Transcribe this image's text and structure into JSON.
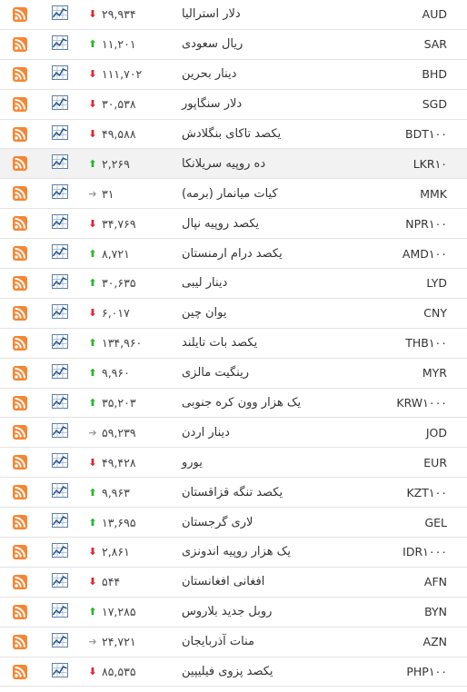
{
  "colors": {
    "down": "#e0262b",
    "up": "#2ab534",
    "same": "#9a9a9a",
    "rss": "#f58634"
  },
  "icons": {
    "feed": "rss-icon",
    "history": "chart-icon"
  },
  "rows": [
    {
      "code": "AUD",
      "name": "دلار استرالیا",
      "price": "۲۹,۹۳۴",
      "trend": "down",
      "arrow": "⬇"
    },
    {
      "code": "SAR",
      "name": "ریال سعودی",
      "price": "۱۱,۲۰۱",
      "trend": "up",
      "arrow": "⬆"
    },
    {
      "code": "BHD",
      "name": "دینار بحرین",
      "price": "۱۱۱,۷۰۲",
      "trend": "down",
      "arrow": "⬇"
    },
    {
      "code": "SGD",
      "name": "دلار سنگاپور",
      "price": "۳۰,۵۳۸",
      "trend": "down",
      "arrow": "⬇"
    },
    {
      "code": "BDT۱۰۰",
      "name": "یکصد تاکای بنگلادش",
      "price": "۴۹,۵۸۸",
      "trend": "down",
      "arrow": "⬇"
    },
    {
      "code": "LKR۱۰",
      "name": "ده روپیه سریلانکا",
      "price": "۲,۲۶۹",
      "trend": "up",
      "arrow": "⬆"
    },
    {
      "code": "MMK",
      "name": "کیات میانمار (برمه)",
      "price": "۳۱",
      "trend": "same",
      "arrow": "➔"
    },
    {
      "code": "NPR۱۰۰",
      "name": "یکصد روپیه نپال",
      "price": "۳۴,۷۶۹",
      "trend": "down",
      "arrow": "⬇"
    },
    {
      "code": "AMD۱۰۰",
      "name": "یکصد درام ارمنستان",
      "price": "۸,۷۲۱",
      "trend": "up",
      "arrow": "⬆"
    },
    {
      "code": "LYD",
      "name": "دینار لیبی",
      "price": "۳۰,۶۳۵",
      "trend": "up",
      "arrow": "⬆"
    },
    {
      "code": "CNY",
      "name": "یوان چین",
      "price": "۶,۰۱۷",
      "trend": "down",
      "arrow": "⬇"
    },
    {
      "code": "THB۱۰۰",
      "name": "یکصد بات تایلند",
      "price": "۱۳۴,۹۶۰",
      "trend": "up",
      "arrow": "⬆"
    },
    {
      "code": "MYR",
      "name": "رینگیت مالزی",
      "price": "۹,۹۶۰",
      "trend": "up",
      "arrow": "⬆"
    },
    {
      "code": "KRW۱۰۰۰",
      "name": "یک هزار وون کره جنوبی",
      "price": "۳۵,۲۰۳",
      "trend": "up",
      "arrow": "⬆"
    },
    {
      "code": "JOD",
      "name": "دینار اردن",
      "price": "۵۹,۲۳۹",
      "trend": "same",
      "arrow": "➔"
    },
    {
      "code": "EUR",
      "name": "یورو",
      "price": "۴۹,۴۲۸",
      "trend": "down",
      "arrow": "⬇"
    },
    {
      "code": "KZT۱۰۰",
      "name": "یکصد تنگه قزاقستان",
      "price": "۹,۹۶۳",
      "trend": "up",
      "arrow": "⬆"
    },
    {
      "code": "GEL",
      "name": "لاری گرجستان",
      "price": "۱۳,۶۹۵",
      "trend": "up",
      "arrow": "⬆"
    },
    {
      "code": "IDR۱۰۰۰",
      "name": "یک هزار روپیه اندونزی",
      "price": "۲,۸۶۱",
      "trend": "down",
      "arrow": "⬇"
    },
    {
      "code": "AFN",
      "name": "افغانی افغانستان",
      "price": "۵۴۴",
      "trend": "down",
      "arrow": "⬇"
    },
    {
      "code": "BYN",
      "name": "روبل جدید بلاروس",
      "price": "۱۷,۲۸۵",
      "trend": "up",
      "arrow": "⬆"
    },
    {
      "code": "AZN",
      "name": "منات آذربایجان",
      "price": "۲۴,۷۲۱",
      "trend": "same",
      "arrow": "➔"
    },
    {
      "code": "PHP۱۰۰",
      "name": "یکصد پزوی فیلیپین",
      "price": "۸۵,۵۳۵",
      "trend": "down",
      "arrow": "⬇"
    }
  ]
}
